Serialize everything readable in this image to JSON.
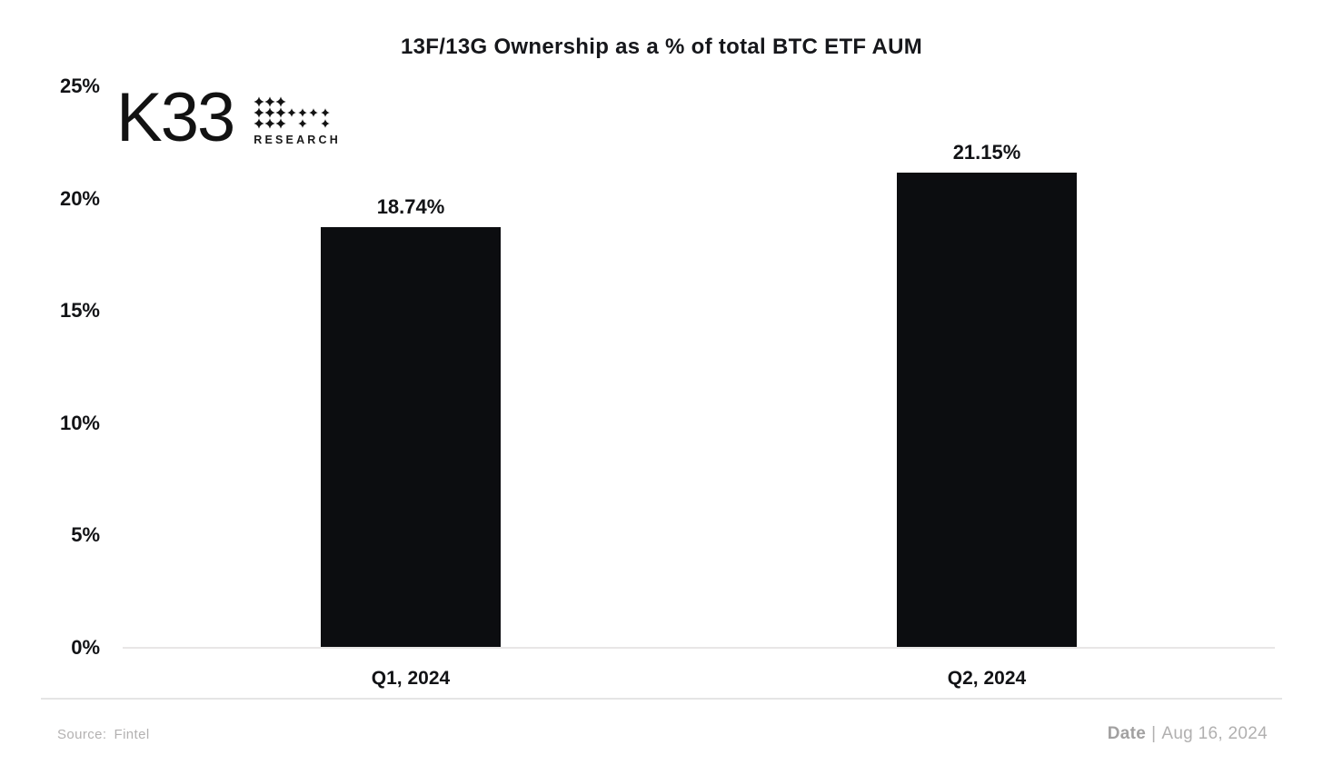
{
  "logo": {
    "brand": "K33",
    "research": "RESEARCH"
  },
  "chart_data": {
    "type": "bar",
    "title": "13F/13G Ownership as a % of total BTC ETF AUM",
    "categories": [
      "Q1, 2024",
      "Q2, 2024"
    ],
    "values": [
      18.74,
      21.15
    ],
    "value_labels": [
      "18.74%",
      "21.15%"
    ],
    "xlabel": "",
    "ylabel": "",
    "ylim": [
      0,
      25
    ],
    "ytick_step": 5,
    "ytick_labels": [
      "0%",
      "5%",
      "10%",
      "15%",
      "20%",
      "25%"
    ],
    "grid": false,
    "legend": "none",
    "bar_color": "#0c0d10"
  },
  "footer": {
    "source_label": "Source:",
    "source_value": "Fintel",
    "date_label": "Date",
    "date_separator": "|",
    "date_value": "Aug 16, 2024"
  }
}
